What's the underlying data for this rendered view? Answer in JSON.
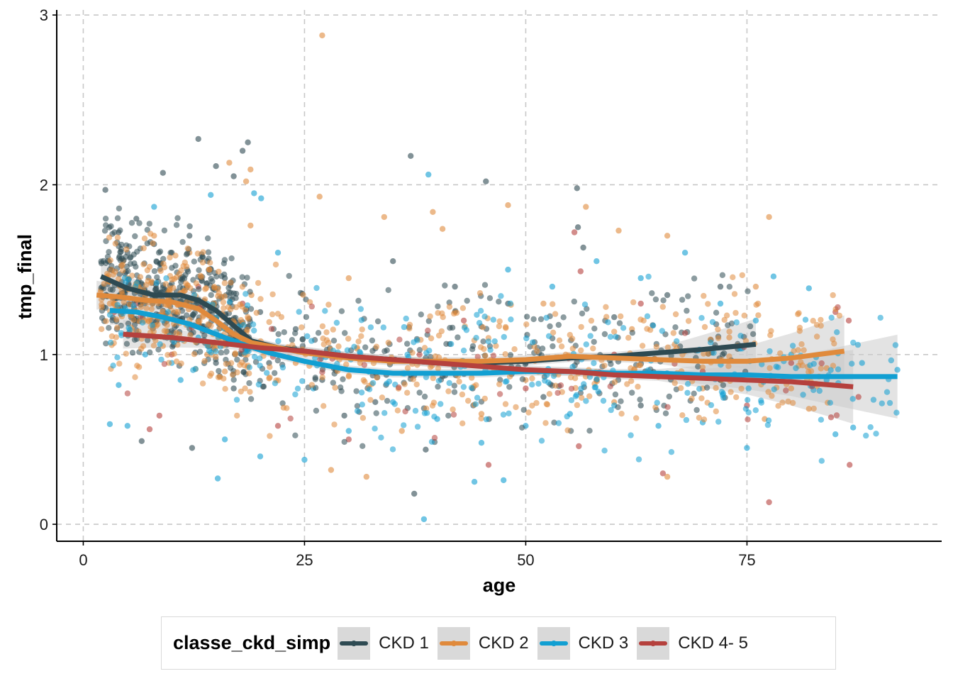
{
  "chart_data": {
    "type": "scatter",
    "title": "",
    "xlabel": "age",
    "ylabel": "tmp_final",
    "xlim": [
      -3,
      97
    ],
    "ylim": [
      -0.1,
      3.03
    ],
    "x_ticks": [
      0,
      25,
      50,
      75
    ],
    "y_ticks": [
      0,
      1,
      2,
      3
    ],
    "grid": true,
    "legend_position": "bottom",
    "legend_title": "classe_ckd_simp",
    "series": [
      {
        "name": "CKD 1",
        "color": "#2e4a52",
        "smooth": [
          [
            2,
            1.46
          ],
          [
            5,
            1.39
          ],
          [
            8,
            1.35
          ],
          [
            11,
            1.35
          ],
          [
            13,
            1.32
          ],
          [
            15,
            1.26
          ],
          [
            17,
            1.17
          ],
          [
            19,
            1.08
          ],
          [
            22,
            1.04
          ],
          [
            25,
            1.02
          ],
          [
            30,
            0.99
          ],
          [
            35,
            0.97
          ],
          [
            40,
            0.95
          ],
          [
            45,
            0.95
          ],
          [
            50,
            0.96
          ],
          [
            55,
            0.98
          ],
          [
            60,
            0.99
          ],
          [
            65,
            1.01
          ],
          [
            70,
            1.03
          ],
          [
            76,
            1.06
          ]
        ],
        "points": [
          [
            9,
            2.07
          ],
          [
            13,
            2.27
          ],
          [
            18,
            2.2
          ],
          [
            18.6,
            2.25
          ],
          [
            17,
            2.05
          ],
          [
            15,
            2.11
          ],
          [
            2.5,
            1.97
          ],
          [
            10,
            1.6
          ],
          [
            12,
            1.7
          ],
          [
            14,
            1.55
          ],
          [
            16,
            1.45
          ],
          [
            6,
            1.8
          ],
          [
            4,
            1.72
          ],
          [
            8,
            1.65
          ],
          [
            37,
            2.17
          ],
          [
            45.5,
            2.02
          ],
          [
            55.8,
            1.98
          ],
          [
            55.9,
            1.75
          ],
          [
            56.5,
            1.63
          ],
          [
            37.4,
            0.18
          ],
          [
            38.7,
            0.44
          ],
          [
            12.3,
            0.45
          ],
          [
            6.6,
            0.49
          ],
          [
            29.5,
            0.64
          ],
          [
            35,
            1.55
          ],
          [
            42,
            1.4
          ],
          [
            48,
            1.3
          ],
          [
            60,
            1.22
          ],
          [
            66,
            1.35
          ],
          [
            72,
            1.4
          ],
          [
            74,
            1.05
          ],
          [
            63,
            0.7
          ],
          [
            58,
            0.85
          ],
          [
            52,
            0.75
          ],
          [
            44,
            0.8
          ],
          [
            33,
            0.72
          ],
          [
            27,
            0.85
          ],
          [
            24,
            1.15
          ],
          [
            21,
            0.95
          ],
          [
            20,
            1.25
          ],
          [
            3,
            1.5
          ],
          [
            5,
            1.6
          ],
          [
            7,
            1.35
          ],
          [
            11,
            1.45
          ],
          [
            13,
            1.2
          ],
          [
            15,
            0.95
          ],
          [
            17,
            0.8
          ]
        ]
      },
      {
        "name": "CKD 2",
        "color": "#e08a3c",
        "smooth": [
          [
            1.5,
            1.35
          ],
          [
            4,
            1.34
          ],
          [
            7,
            1.32
          ],
          [
            10,
            1.31
          ],
          [
            13,
            1.27
          ],
          [
            15,
            1.2
          ],
          [
            17,
            1.12
          ],
          [
            19,
            1.07
          ],
          [
            22,
            1.04
          ],
          [
            25,
            1.01
          ],
          [
            30,
            0.98
          ],
          [
            35,
            0.96
          ],
          [
            40,
            0.96
          ],
          [
            45,
            0.96
          ],
          [
            50,
            0.97
          ],
          [
            55,
            0.99
          ],
          [
            60,
            0.98
          ],
          [
            65,
            0.97
          ],
          [
            70,
            0.96
          ],
          [
            75,
            0.96
          ],
          [
            80,
            0.98
          ],
          [
            86,
            1.02
          ]
        ],
        "points": [
          [
            27,
            2.88
          ],
          [
            16.5,
            2.13
          ],
          [
            18.9,
            2.09
          ],
          [
            18.4,
            2.02
          ],
          [
            26.7,
            1.93
          ],
          [
            48,
            1.88
          ],
          [
            56.8,
            1.87
          ],
          [
            39.5,
            1.84
          ],
          [
            77.5,
            1.81
          ],
          [
            34,
            1.81
          ],
          [
            40.6,
            1.74
          ],
          [
            60.5,
            1.73
          ],
          [
            66,
            1.7
          ],
          [
            18.9,
            1.76
          ],
          [
            12,
            1.6
          ],
          [
            8,
            1.7
          ],
          [
            5,
            1.45
          ],
          [
            3,
            1.3
          ],
          [
            6,
            1.2
          ],
          [
            10,
            1.1
          ],
          [
            14,
            1.0
          ],
          [
            16,
            0.9
          ],
          [
            21,
            0.86
          ],
          [
            28,
            0.32
          ],
          [
            32,
            0.28
          ],
          [
            66,
            0.28
          ],
          [
            77,
            0.62
          ],
          [
            82,
            0.68
          ],
          [
            70,
            0.8
          ],
          [
            60,
            0.72
          ],
          [
            50,
            0.85
          ],
          [
            45,
            0.65
          ],
          [
            36,
            0.55
          ],
          [
            30,
            1.45
          ],
          [
            42,
            1.25
          ],
          [
            52,
            1.3
          ],
          [
            62,
            1.15
          ],
          [
            68,
            1.02
          ],
          [
            73,
            1.1
          ],
          [
            76,
            1.4
          ],
          [
            80,
            0.8
          ],
          [
            84,
            0.92
          ],
          [
            24,
            0.95
          ],
          [
            19,
            1.35
          ],
          [
            2,
            1.38
          ],
          [
            4.5,
            1.55
          ],
          [
            9,
            1.05
          ]
        ]
      },
      {
        "name": "CKD 3",
        "color": "#119fd2",
        "smooth": [
          [
            3,
            1.26
          ],
          [
            6,
            1.25
          ],
          [
            9,
            1.22
          ],
          [
            12,
            1.18
          ],
          [
            15,
            1.12
          ],
          [
            18,
            1.06
          ],
          [
            21,
            1.01
          ],
          [
            25,
            0.96
          ],
          [
            30,
            0.91
          ],
          [
            35,
            0.89
          ],
          [
            40,
            0.89
          ],
          [
            45,
            0.89
          ],
          [
            50,
            0.9
          ],
          [
            55,
            0.9
          ],
          [
            60,
            0.89
          ],
          [
            65,
            0.89
          ],
          [
            70,
            0.88
          ],
          [
            75,
            0.88
          ],
          [
            80,
            0.87
          ],
          [
            85,
            0.87
          ],
          [
            92,
            0.87
          ]
        ],
        "points": [
          [
            39,
            2.06
          ],
          [
            14.4,
            1.94
          ],
          [
            20.1,
            1.92
          ],
          [
            19.3,
            1.95
          ],
          [
            8,
            1.87
          ],
          [
            38.5,
            0.03
          ],
          [
            15.2,
            0.27
          ],
          [
            44.2,
            0.25
          ],
          [
            47.5,
            0.26
          ],
          [
            92,
            0.91
          ],
          [
            78,
            1.46
          ],
          [
            82,
            1.39
          ],
          [
            85,
            0.53
          ],
          [
            87,
            0.57
          ],
          [
            75,
            0.45
          ],
          [
            70,
            0.6
          ],
          [
            65,
            0.58
          ],
          [
            60,
            0.7
          ],
          [
            55,
            0.65
          ],
          [
            50,
            0.58
          ],
          [
            45,
            0.48
          ],
          [
            40,
            0.62
          ],
          [
            35,
            0.72
          ],
          [
            30,
            0.55
          ],
          [
            25,
            0.38
          ],
          [
            20,
            0.4
          ],
          [
            16,
            0.5
          ],
          [
            3,
            0.59
          ],
          [
            5,
            0.58
          ],
          [
            10,
            0.95
          ],
          [
            13,
            1.1
          ],
          [
            22,
            1.6
          ],
          [
            48,
            1.5
          ],
          [
            53,
            1.4
          ],
          [
            58,
            1.55
          ],
          [
            63,
            1.45
          ],
          [
            68,
            1.6
          ],
          [
            72,
            1.3
          ],
          [
            80,
            1.0
          ],
          [
            84,
            0.85
          ],
          [
            88,
            0.95
          ],
          [
            76,
            1.2
          ],
          [
            4,
            0.82
          ],
          [
            7,
            1.0
          ],
          [
            11,
            0.85
          ],
          [
            26,
            0.8
          ]
        ]
      },
      {
        "name": "CKD 4- 5",
        "color": "#b5413d",
        "smooth": [
          [
            4.5,
            1.12
          ],
          [
            10,
            1.1
          ],
          [
            15,
            1.07
          ],
          [
            20,
            1.04
          ],
          [
            25,
            1.02
          ],
          [
            30,
            0.99
          ],
          [
            35,
            0.97
          ],
          [
            40,
            0.95
          ],
          [
            45,
            0.93
          ],
          [
            50,
            0.91
          ],
          [
            55,
            0.9
          ],
          [
            60,
            0.88
          ],
          [
            65,
            0.87
          ],
          [
            70,
            0.86
          ],
          [
            75,
            0.85
          ],
          [
            80,
            0.84
          ],
          [
            87,
            0.81
          ]
        ],
        "points": [
          [
            85,
            1.25
          ],
          [
            86.5,
            1.2
          ],
          [
            87.6,
            0.75
          ],
          [
            86.6,
            0.35
          ],
          [
            77.5,
            0.13
          ],
          [
            55.5,
            1.72
          ],
          [
            56.2,
            1.49
          ],
          [
            43,
            1.2
          ],
          [
            45.8,
            0.35
          ],
          [
            56,
            0.46
          ],
          [
            65.5,
            0.3
          ],
          [
            63,
            1.3
          ],
          [
            84.5,
            0.63
          ],
          [
            7.5,
            0.56
          ],
          [
            8.6,
            0.64
          ],
          [
            3.5,
            1.25
          ],
          [
            6,
            1.3
          ],
          [
            10,
            1.0
          ],
          [
            13,
            1.4
          ],
          [
            18,
            1.3
          ],
          [
            22,
            0.58
          ],
          [
            30,
            0.5
          ],
          [
            38,
            1.0
          ],
          [
            50,
            0.8
          ],
          [
            60,
            1.0
          ],
          [
            70,
            0.9
          ],
          [
            75,
            0.7
          ],
          [
            80,
            0.95
          ]
        ]
      }
    ],
    "confidence_band_color": "#cccccc"
  }
}
